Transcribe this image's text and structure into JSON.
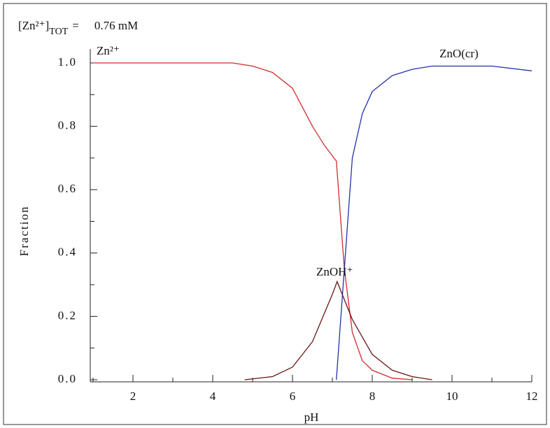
{
  "chart_data": {
    "type": "line",
    "annotation": {
      "open": "[Zn²⁺]",
      "sub": "TOT",
      "eq": "=",
      "value": "0.76 mM"
    },
    "xlabel": "pH",
    "ylabel": "Fraction",
    "xlim": [
      1,
      12
    ],
    "ylim": [
      0,
      1
    ],
    "xticks": [
      2,
      4,
      6,
      8,
      10,
      12
    ],
    "xminor_ticks": [
      1,
      3,
      5,
      7,
      9,
      11
    ],
    "yticks": [
      {
        "value": 0,
        "label": "0.0"
      },
      0.2,
      0.4,
      0.6,
      0.8,
      {
        "value": 1,
        "label": "1.0"
      }
    ],
    "yminor_ticks": [
      0.1,
      0.3,
      0.5,
      0.7,
      0.9
    ],
    "series": [
      {
        "name": "Zn²⁺",
        "color": "#d42a2a",
        "x": [
          1,
          2,
          3,
          4,
          4.5,
          5,
          5.5,
          6,
          6.5,
          6.8,
          7.1,
          7.3,
          7.5,
          7.75,
          8,
          8.5,
          9
        ],
        "values": [
          1,
          1,
          1,
          1,
          1,
          0.99,
          0.97,
          0.92,
          0.8,
          0.74,
          0.69,
          0.35,
          0.15,
          0.06,
          0.03,
          0.005,
          0
        ]
      },
      {
        "name": "ZnO(cr)",
        "color": "#2233aa",
        "x": [
          7.1,
          7.3,
          7.5,
          7.75,
          8,
          8.5,
          9,
          9.5,
          10,
          11,
          12
        ],
        "values": [
          0,
          0.35,
          0.7,
          0.84,
          0.91,
          0.96,
          0.98,
          0.99,
          0.99,
          0.99,
          0.975
        ]
      },
      {
        "name": "ZnOH⁺",
        "color": "#6b1414",
        "x": [
          4.8,
          5.5,
          6,
          6.5,
          7,
          7.12,
          7.5,
          8,
          8.5,
          9,
          9.5
        ],
        "values": [
          0,
          0.01,
          0.04,
          0.12,
          0.27,
          0.31,
          0.19,
          0.08,
          0.03,
          0.01,
          0
        ]
      }
    ]
  }
}
